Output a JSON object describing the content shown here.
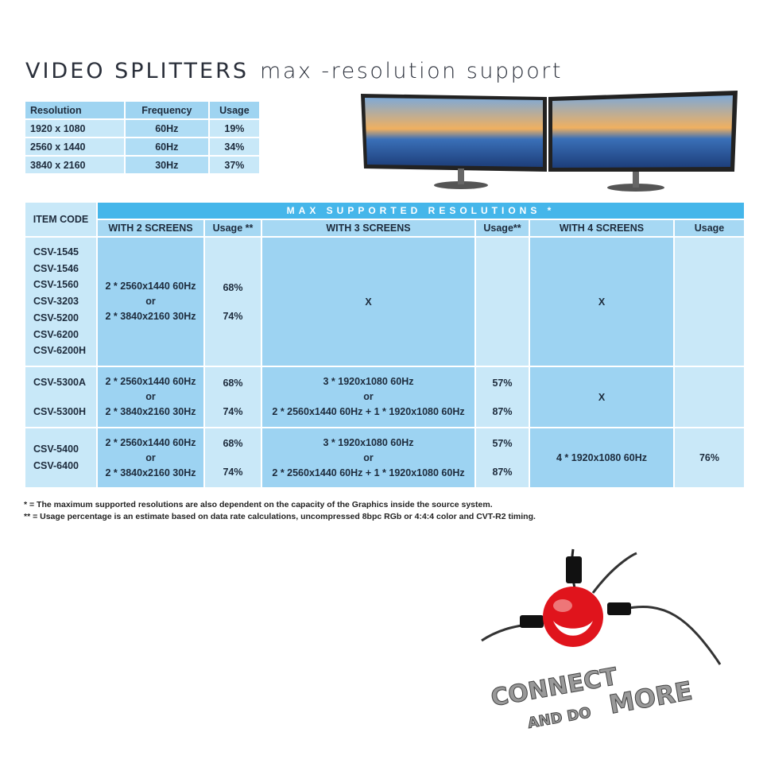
{
  "title": {
    "main": "VIDEO SPLITTERS",
    "sub": "max -resolution support"
  },
  "resolution_table": {
    "headers": [
      "Resolution",
      "Frequency",
      "Usage"
    ],
    "rows": [
      [
        "1920 x 1080",
        "60Hz",
        "19%"
      ],
      [
        "2560 x 1440",
        "60Hz",
        "34%"
      ],
      [
        "3840 x 2160",
        "30Hz",
        "37%"
      ]
    ]
  },
  "support_table": {
    "item_code_header": "ITEM CODE",
    "banner": "MAX SUPPORTED RESOLUTIONS *",
    "headers": [
      "WITH 2 SCREENS",
      "Usage **",
      "WITH 3 SCREENS",
      "Usage**",
      "WITH 4 SCREENS",
      "Usage"
    ],
    "rows": [
      {
        "codes": [
          "CSV-1545",
          "CSV-1546",
          "CSV-1560",
          "CSV-3203",
          "CSV-5200",
          "CSV-6200",
          "CSV-6200H"
        ],
        "two": [
          "2 * 2560x1440 60Hz",
          "or",
          "2 * 3840x2160 30Hz"
        ],
        "two_usage": [
          "68%",
          "74%"
        ],
        "three": "X",
        "three_usage": [
          "",
          ""
        ],
        "four": "X",
        "four_usage": ""
      },
      {
        "codes": [
          "CSV-5300A",
          "CSV-5300H"
        ],
        "two": [
          "2 * 2560x1440 60Hz",
          "or",
          "2 * 3840x2160 30Hz"
        ],
        "two_usage": [
          "68%",
          "74%"
        ],
        "three": [
          "3 * 1920x1080 60Hz",
          "or",
          "2 * 2560x1440 60Hz + 1 * 1920x1080 60Hz"
        ],
        "three_usage": [
          "57%",
          "87%"
        ],
        "four": "X",
        "four_usage": ""
      },
      {
        "codes": [
          "CSV-5400",
          "CSV-6400"
        ],
        "two": [
          "2 * 2560x1440 60Hz",
          "or",
          "2 * 3840x2160 30Hz"
        ],
        "two_usage": [
          "68%",
          "74%"
        ],
        "three": [
          "3 * 1920x1080 60Hz",
          "or",
          "2 * 2560x1440 60Hz + 1 * 1920x1080 60Hz"
        ],
        "three_usage": [
          "57%",
          "87%"
        ],
        "four": "4 * 1920x1080 60Hz",
        "four_usage": "76%"
      }
    ]
  },
  "notes": [
    "*   = The maximum supported resolutions are also dependent on the capacity of the Graphics inside the source system.",
    "** = Usage percentage is an estimate based on data rate calculations, uncompressed 8bpc RGb or 4:4:4 color and CVT-R2 timing."
  ],
  "logo": {
    "line1": "CONNECT",
    "line2": "AND DO MORE"
  },
  "colors": {
    "banner": "#45b6ea",
    "header": "#a6d8f3",
    "dark_cell": "#9dd3f2",
    "light_cell": "#c9e8f8"
  }
}
